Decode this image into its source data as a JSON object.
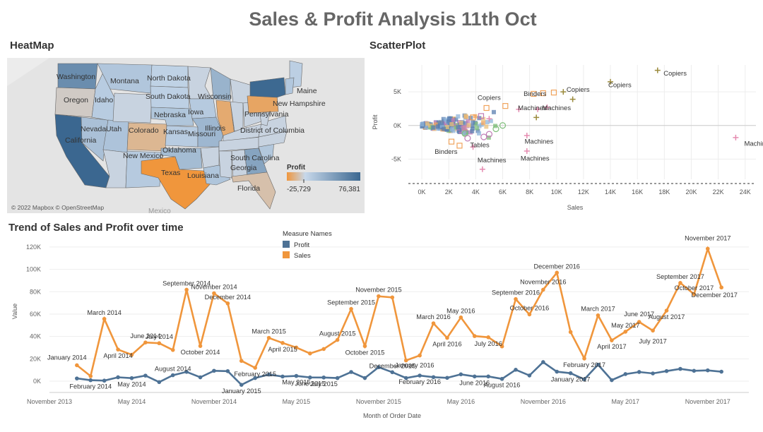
{
  "dashboard": {
    "title": "Sales & Profit Analysis 11th Oct"
  },
  "heatmap": {
    "title": "HeatMap",
    "credit": "© 2022 Mapbox © OpenStreetMap",
    "legend": {
      "title": "Profit",
      "min": "-25,729",
      "max": "76,381"
    },
    "colors": {
      "neg": "#f0963c",
      "light": "#c7d8ea",
      "pos": "#3b6790",
      "water": "#ffffff",
      "land": "#d9d9d9"
    },
    "states": [
      {
        "name": "Washington",
        "profit": 33403
      },
      {
        "name": "Montana",
        "profit": 1833
      },
      {
        "name": "North Dakota",
        "profit": 230
      },
      {
        "name": "Oregon",
        "profit": -1190
      },
      {
        "name": "Idaho",
        "profit": 827
      },
      {
        "name": "Wisconsin",
        "profit": 8401
      },
      {
        "name": "South Dakota",
        "profit": 394
      },
      {
        "name": "Nebraska",
        "profit": 2037
      },
      {
        "name": "Iowa",
        "profit": 1184
      },
      {
        "name": "Nevada",
        "profit": 3317
      },
      {
        "name": "Utah",
        "profit": 2547
      },
      {
        "name": "Colorado",
        "profit": -6528
      },
      {
        "name": "Kansas",
        "profit": 836
      },
      {
        "name": "Missouri",
        "profit": 6436
      },
      {
        "name": "Illinois",
        "profit": -12608
      },
      {
        "name": "California",
        "profit": 76381
      },
      {
        "name": "New Mexico",
        "profit": 1157
      },
      {
        "name": "Oklahoma",
        "profit": 4853
      },
      {
        "name": "Texas",
        "profit": -25729
      },
      {
        "name": "Louisiana",
        "profit": 2196
      },
      {
        "name": "Pennsylvania",
        "profit": -15560
      },
      {
        "name": "New York",
        "profit": 74039
      },
      {
        "name": "Maine",
        "profit": 454
      },
      {
        "name": "New Hampshire",
        "profit": 1707
      },
      {
        "name": "South Carolina",
        "profit": 1769
      },
      {
        "name": "Georgia",
        "profit": 16250
      },
      {
        "name": "Florida",
        "profit": -3399
      },
      {
        "name": "District of Columbia",
        "profit": 1060
      }
    ],
    "bg_labels": [
      "Mexico"
    ]
  },
  "scatter": {
    "title": "ScatterPlot",
    "xlabel": "Sales",
    "ylabel": "Profit",
    "xticks": [
      "0K",
      "2K",
      "4K",
      "6K",
      "8K",
      "10K",
      "12K",
      "14K",
      "16K",
      "18K",
      "20K",
      "22K",
      "24K"
    ],
    "yticks": [
      "5K",
      "0K",
      "-5K"
    ],
    "shape_colors": {
      "Copiers": "#9b8a3c",
      "Binders": "#f0a35c",
      "Machines": "#e58bb0",
      "Tables": "#c07bb5",
      "Chairs": "#7fbf7b",
      "Phones": "#5b7fb0"
    },
    "annotations": [
      "Copiers",
      "Copiers",
      "Copiers",
      "Copiers",
      "Binders",
      "Machines",
      "Machines",
      "Machines",
      "Machines",
      "Machines",
      "Machines",
      "Tables",
      "Binders"
    ]
  },
  "chart_data": {
    "type": "line",
    "title": "Trend of Sales and Profit over time",
    "xlabel": "Month of Order Date",
    "ylabel": "Value",
    "ylim": [
      0,
      125000
    ],
    "yticks": [
      "0K",
      "20K",
      "40K",
      "60K",
      "80K",
      "100K",
      "120K"
    ],
    "xticks": [
      "November 2013",
      "May 2014",
      "November 2014",
      "May 2015",
      "November 2015",
      "May 2016",
      "November 2016",
      "May 2017",
      "November 2017"
    ],
    "legend_title": "Measure Names",
    "legend_position": "top",
    "categories": [
      "January 2014",
      "February 2014",
      "March 2014",
      "April 2014",
      "May 2014",
      "June 2014",
      "July 2014",
      "August 2014",
      "September 2014",
      "October 2014",
      "November 2014",
      "December 2014",
      "January 2015",
      "February 2015",
      "March 2015",
      "April 2015",
      "May 2015",
      "June 2015",
      "July 2015",
      "August 2015",
      "September 2015",
      "October 2015",
      "November 2015",
      "December 2015",
      "January 2016",
      "February 2016",
      "March 2016",
      "April 2016",
      "May 2016",
      "June 2016",
      "July 2016",
      "August 2016",
      "September 2016",
      "October 2016",
      "November 2016",
      "December 2016",
      "January 2017",
      "February 2017",
      "March 2017",
      "April 2017",
      "May 2017",
      "June 2017",
      "July 2017",
      "August 2017",
      "September 2017",
      "October 2017",
      "November 2017",
      "December 2017"
    ],
    "series": [
      {
        "name": "Sales",
        "color": "#f0963c",
        "values": [
          14237,
          4520,
          55691,
          28295,
          23649,
          34595,
          33946,
          27909,
          81777,
          31453,
          78629,
          69546,
          18174,
          11951,
          38727,
          34195,
          30131,
          24797,
          28765,
          36899,
          64595,
          31405,
          75973,
          74920,
          18542,
          22979,
          51716,
          38750,
          56988,
          40345,
          39262,
          31115,
          73410,
          59688,
          81795,
          96999,
          43971,
          20301,
          58872,
          36522,
          44261,
          52982,
          45264,
          63121,
          87867,
          77777,
          118448,
          83829
        ]
      },
      {
        "name": "Profit",
        "color": "#4e7295",
        "values": [
          2450,
          862,
          498,
          3489,
          2739,
          4977,
          -841,
          5318,
          8329,
          3448,
          9292,
          8984,
          -3281,
          2814,
          5932,
          4187,
          4668,
          3336,
          3289,
          2788,
          8210,
          2817,
          12474,
          8016,
          2824,
          5004,
          3611,
          2978,
          6106,
          4218,
          4217,
          2064,
          10212,
          5117,
          17066,
          8483,
          7140,
          1613,
          14752,
          933,
          6342,
          8224,
          6952,
          9040,
          10991,
          9275,
          9690,
          8483
        ]
      }
    ]
  }
}
